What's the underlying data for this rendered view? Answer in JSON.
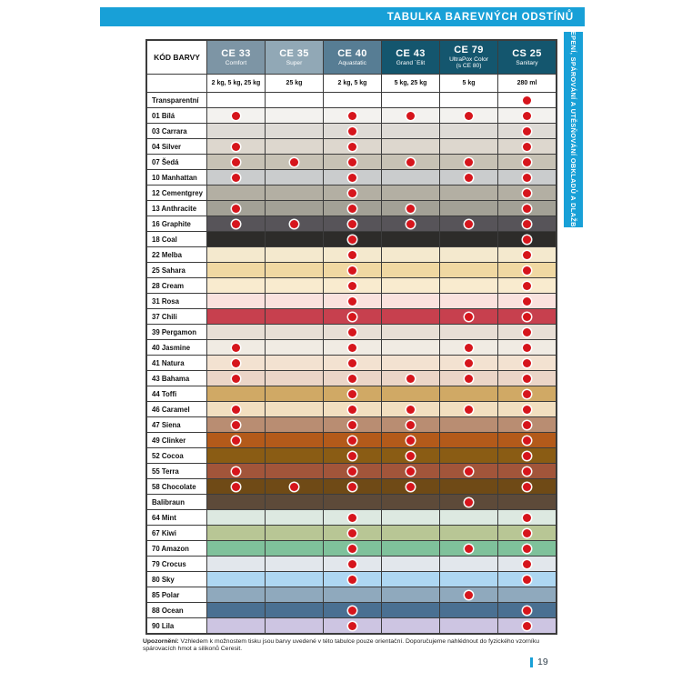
{
  "banner": {
    "title": "TABULKA BAREVNÝCH ODSTÍNŮ",
    "color": "#18a0d7"
  },
  "side_tab": {
    "label": "LEPENÍ, SPÁROVÁNÍ A UTĚSŇOVÁNÍ OBKLADŮ A DLAŽBY"
  },
  "table": {
    "corner_header": "KÓD BARVY",
    "dot_color": "#d6151c",
    "columns": [
      {
        "code": "CE 33",
        "subtitle": "Comfort",
        "subtitle2": "",
        "package": "2 kg, 5 kg, 25 kg",
        "header_bg": "#7d95a5"
      },
      {
        "code": "CE 35",
        "subtitle": "Super",
        "subtitle2": "",
        "package": "25 kg",
        "header_bg": "#91a8b6"
      },
      {
        "code": "CE 40",
        "subtitle": "Aquastatic",
        "subtitle2": "",
        "package": "2 kg, 5 kg",
        "header_bg": "#577d94"
      },
      {
        "code": "CE 43",
        "subtitle": "Grand ´Elit",
        "subtitle2": "",
        "package": "5 kg, 25 kg",
        "header_bg": "#14566e"
      },
      {
        "code": "CE 79",
        "subtitle": "UltraPox Color",
        "subtitle2": "(s CE 80)",
        "package": "5 kg",
        "header_bg": "#14566e"
      },
      {
        "code": "CS 25",
        "subtitle": "Sanitary",
        "subtitle2": "",
        "package": "280 ml",
        "header_bg": "#14566e"
      }
    ],
    "rows": [
      {
        "label": "Transparentní",
        "color": "#ffffff",
        "dots": [
          0,
          0,
          0,
          0,
          0,
          1
        ]
      },
      {
        "label": "01 Bílá",
        "color": "#f3f2ef",
        "dots": [
          1,
          0,
          1,
          1,
          1,
          1
        ]
      },
      {
        "label": "03 Carrara",
        "color": "#dedbd6",
        "dots": [
          0,
          0,
          1,
          0,
          0,
          1
        ]
      },
      {
        "label": "04 Silver",
        "color": "#ddd7ce",
        "dots": [
          1,
          0,
          1,
          0,
          0,
          1
        ]
      },
      {
        "label": "07 Šedá",
        "color": "#c7c2b5",
        "dots": [
          1,
          1,
          1,
          1,
          1,
          1
        ]
      },
      {
        "label": "10 Manhattan",
        "color": "#cacccd",
        "dots": [
          1,
          0,
          1,
          0,
          1,
          1
        ]
      },
      {
        "label": "12 Cementgrey",
        "color": "#b3afa3",
        "dots": [
          0,
          0,
          1,
          0,
          0,
          1
        ]
      },
      {
        "label": "13 Anthracite",
        "color": "#a3a196",
        "dots": [
          1,
          0,
          1,
          1,
          0,
          1
        ]
      },
      {
        "label": "16 Graphite",
        "color": "#575459",
        "dots": [
          1,
          1,
          1,
          1,
          1,
          1
        ]
      },
      {
        "label": "18 Coal",
        "color": "#2d2c2a",
        "dots": [
          0,
          0,
          1,
          0,
          0,
          1
        ]
      },
      {
        "label": "22 Melba",
        "color": "#f4e9ce",
        "dots": [
          0,
          0,
          1,
          0,
          0,
          1
        ]
      },
      {
        "label": "25 Sahara",
        "color": "#f0d8a2",
        "dots": [
          0,
          0,
          1,
          0,
          0,
          1
        ]
      },
      {
        "label": "28 Cream",
        "color": "#f9ebcf",
        "dots": [
          0,
          0,
          1,
          0,
          0,
          1
        ]
      },
      {
        "label": "31 Rosa",
        "color": "#fae2de",
        "dots": [
          0,
          0,
          1,
          0,
          0,
          1
        ]
      },
      {
        "label": "37 Chili",
        "color": "#c7404e",
        "dots": [
          0,
          0,
          1,
          0,
          1,
          1
        ]
      },
      {
        "label": "39 Pergamon",
        "color": "#e8ded5",
        "dots": [
          0,
          0,
          1,
          0,
          0,
          1
        ]
      },
      {
        "label": "40 Jasmine",
        "color": "#f0ebe3",
        "dots": [
          1,
          0,
          1,
          0,
          1,
          1
        ]
      },
      {
        "label": "41 Natura",
        "color": "#f3e2d1",
        "dots": [
          1,
          0,
          1,
          0,
          1,
          1
        ]
      },
      {
        "label": "43 Bahama",
        "color": "#ebd5c7",
        "dots": [
          1,
          0,
          1,
          1,
          1,
          1
        ]
      },
      {
        "label": "44 Toffi",
        "color": "#d0a965",
        "dots": [
          0,
          0,
          1,
          0,
          0,
          1
        ]
      },
      {
        "label": "46 Caramel",
        "color": "#f2dfc0",
        "dots": [
          1,
          0,
          1,
          1,
          1,
          1
        ]
      },
      {
        "label": "47 Siena",
        "color": "#b98d72",
        "dots": [
          1,
          0,
          1,
          1,
          0,
          1
        ]
      },
      {
        "label": "49 Clinker",
        "color": "#b35a1a",
        "dots": [
          1,
          0,
          1,
          1,
          0,
          1
        ]
      },
      {
        "label": "52 Cocoa",
        "color": "#8a5c14",
        "dots": [
          0,
          0,
          1,
          1,
          0,
          1
        ]
      },
      {
        "label": "55 Terra",
        "color": "#a2553a",
        "dots": [
          1,
          0,
          1,
          1,
          1,
          1
        ]
      },
      {
        "label": "58 Chocolate",
        "color": "#6f4a16",
        "dots": [
          1,
          1,
          1,
          1,
          0,
          1
        ]
      },
      {
        "label": "Balibraun",
        "color": "#5d4a39",
        "dots": [
          0,
          0,
          0,
          0,
          1,
          0
        ]
      },
      {
        "label": "64 Mint",
        "color": "#dde9e1",
        "dots": [
          0,
          0,
          1,
          0,
          0,
          1
        ]
      },
      {
        "label": "67 Kiwi",
        "color": "#b8c695",
        "dots": [
          0,
          0,
          1,
          0,
          0,
          1
        ]
      },
      {
        "label": "70 Amazon",
        "color": "#7fc19b",
        "dots": [
          0,
          0,
          1,
          0,
          1,
          1
        ]
      },
      {
        "label": "79 Crocus",
        "color": "#e2e7ec",
        "dots": [
          0,
          0,
          1,
          0,
          0,
          1
        ]
      },
      {
        "label": "80 Sky",
        "color": "#aed7f2",
        "dots": [
          0,
          0,
          1,
          0,
          0,
          1
        ]
      },
      {
        "label": "85 Polar",
        "color": "#8fa9bd",
        "dots": [
          0,
          0,
          0,
          0,
          1,
          0
        ]
      },
      {
        "label": "88 Ocean",
        "color": "#4a7092",
        "dots": [
          0,
          0,
          1,
          0,
          0,
          1
        ]
      },
      {
        "label": "90 Lila",
        "color": "#cdc5e2",
        "dots": [
          0,
          0,
          1,
          0,
          0,
          1
        ]
      }
    ]
  },
  "footer": {
    "note_label": "Upozornění:",
    "note_text": " Vzhledem k možnostem tisku jsou barvy uvedené v této tabulce pouze orientační. Doporučujeme nahlédnout do fyzického vzorníku spárovacích hmot a silikonů Ceresit.",
    "page_number": "19"
  }
}
